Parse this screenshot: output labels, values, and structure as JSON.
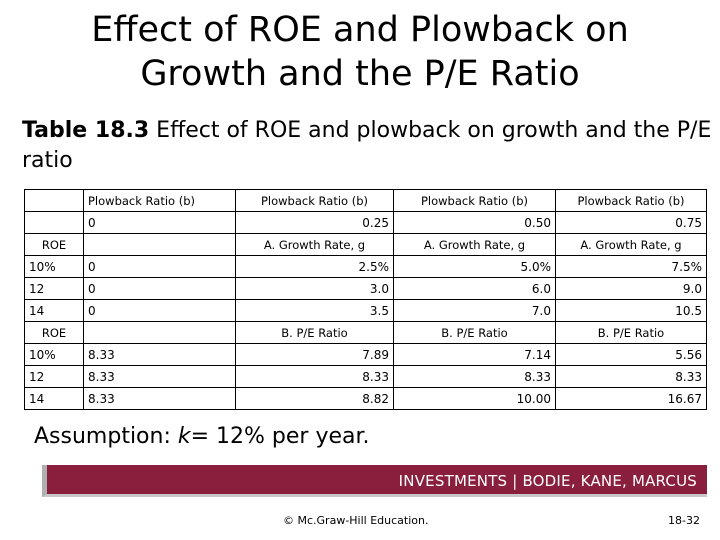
{
  "title_line1": "Effect of ROE and Plowback on",
  "title_line2": "Growth and the P/E Ratio",
  "subtitle_bold": "Table 18.3",
  "subtitle_rest": " Effect of ROE and plowback on growth and the P/E ratio",
  "table": {
    "plowback_header": [
      "Plowback Ratio (b)",
      "Plowback Ratio (b)",
      "Plowback Ratio (b)",
      "Plowback Ratio (b)"
    ],
    "plowback_values": [
      "0",
      "0.25",
      "0.50",
      "0.75"
    ],
    "roe_label": "ROE",
    "growth_header": [
      "A. Growth Rate, g",
      "A. Growth Rate, g",
      "A. Growth Rate, g"
    ],
    "growth_rows": [
      [
        "10%",
        "0",
        "2.5%",
        "5.0%",
        "7.5%"
      ],
      [
        "12",
        "0",
        "3.0",
        "6.0",
        "9.0"
      ],
      [
        "14",
        "0",
        "3.5",
        "7.0",
        "10.5"
      ]
    ],
    "pe_header": [
      "B. P/E Ratio",
      "B. P/E Ratio",
      "B. P/E Ratio"
    ],
    "pe_rows": [
      [
        "10%",
        "8.33",
        "7.89",
        "7.14",
        "5.56"
      ],
      [
        "12",
        "8.33",
        "8.33",
        "8.33",
        "8.33"
      ],
      [
        "14",
        "8.33",
        "8.82",
        "10.00",
        "16.67"
      ]
    ]
  },
  "assumption_prefix": "Assumption: ",
  "assumption_var": "k",
  "assumption_rest": "= 12% per year.",
  "banner_text": "INVESTMENTS | BODIE, KANE, MARCUS",
  "footer_copyright": "© Mc.Graw-Hill Education.",
  "footer_page": "18-32",
  "colors": {
    "banner": "#8a1f3d"
  }
}
